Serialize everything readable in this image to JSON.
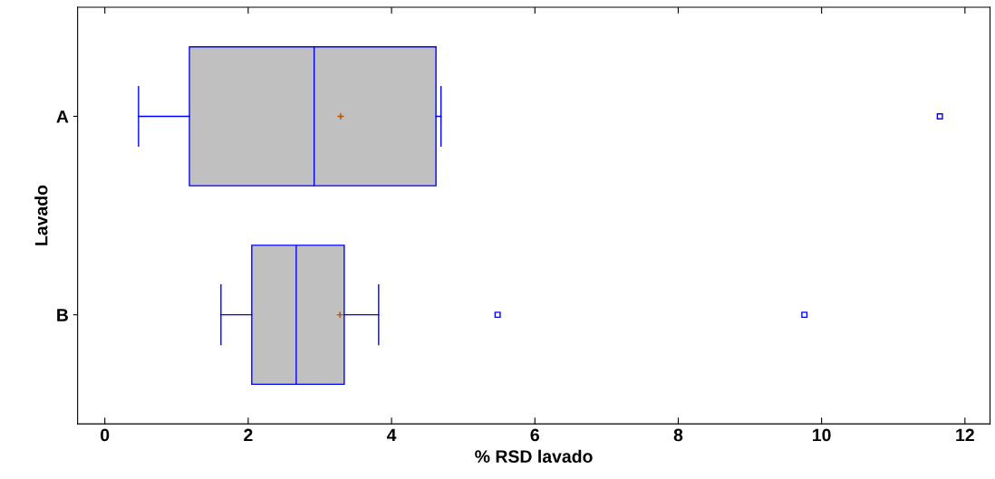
{
  "chart_data": {
    "type": "box",
    "orientation": "horizontal",
    "xlabel": "% RSD lavado",
    "ylabel": "Lavado",
    "categories": [
      "A",
      "B"
    ],
    "boxes": [
      {
        "low": 0.47,
        "q1": 1.18,
        "median": 2.92,
        "q3": 4.62,
        "high": 4.69,
        "mean": 3.29,
        "outliers": [
          11.65
        ]
      },
      {
        "low": 1.62,
        "q1": 2.05,
        "median": 2.67,
        "q3": 3.34,
        "high": 3.82,
        "mean": 3.28,
        "outliers": [
          5.48,
          9.76
        ]
      }
    ],
    "color": "#c0c0c0",
    "xlim": [
      -0.38,
      12.35
    ],
    "xticks": [
      0,
      2,
      4,
      6,
      8,
      10,
      12
    ],
    "grid": false,
    "legend": false
  }
}
